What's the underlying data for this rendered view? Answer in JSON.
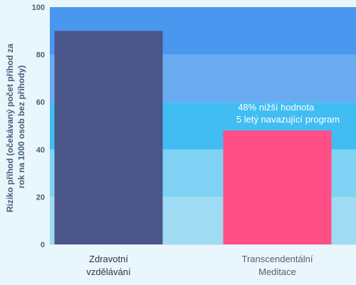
{
  "chart_data": {
    "type": "bar",
    "ylabel_lines": [
      "Riziko příhod (očekávaný počet příhod za",
      "rok na 1000 osob bez příhody)"
    ],
    "ylim": [
      0,
      100
    ],
    "yticks": [
      0,
      20,
      40,
      60,
      80,
      100
    ],
    "categories": [
      [
        "Zdravotní",
        "vzdělávání"
      ],
      [
        "Transcendentální",
        "Meditace"
      ]
    ],
    "values": [
      90,
      48
    ],
    "bar_colors": [
      "#4a5588",
      "#ff4f86"
    ],
    "annotation_lines": [
      "48% nižší hodnota",
      "5 letý navazující program"
    ],
    "band_colors": [
      "#9fdcf3",
      "#7fd2f3",
      "#41bdf3",
      "#6aaaf0",
      "#4a97f0"
    ],
    "grid": false
  }
}
